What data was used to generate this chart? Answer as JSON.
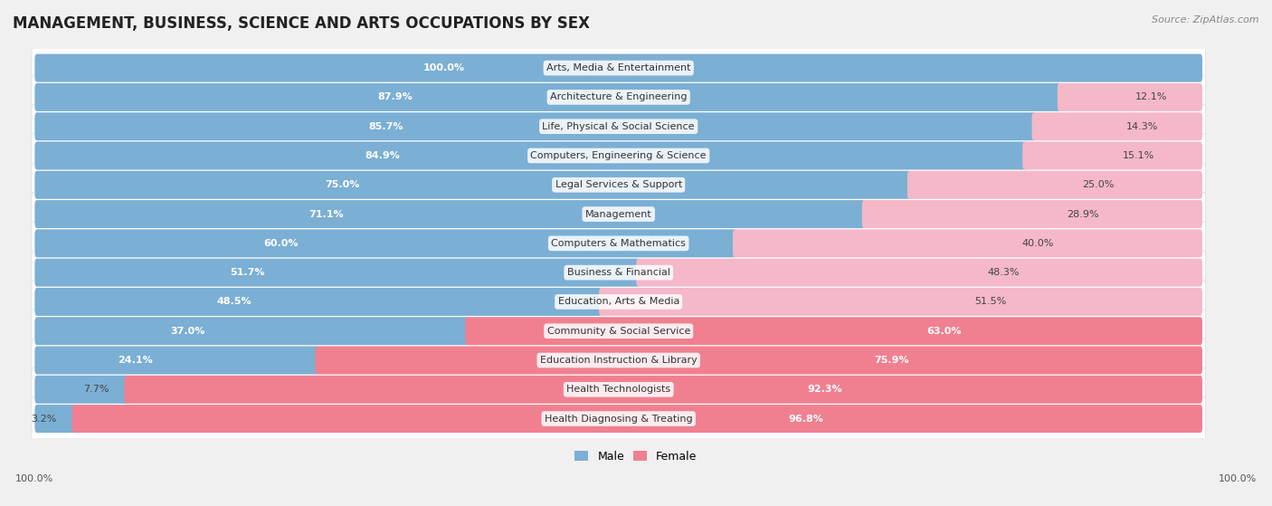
{
  "title": "MANAGEMENT, BUSINESS, SCIENCE AND ARTS OCCUPATIONS BY SEX",
  "source": "Source: ZipAtlas.com",
  "categories": [
    "Arts, Media & Entertainment",
    "Architecture & Engineering",
    "Life, Physical & Social Science",
    "Computers, Engineering & Science",
    "Legal Services & Support",
    "Management",
    "Computers & Mathematics",
    "Business & Financial",
    "Education, Arts & Media",
    "Community & Social Service",
    "Education Instruction & Library",
    "Health Technologists",
    "Health Diagnosing & Treating"
  ],
  "male_pct": [
    100.0,
    87.9,
    85.7,
    84.9,
    75.0,
    71.1,
    60.0,
    51.7,
    48.5,
    37.0,
    24.1,
    7.7,
    3.2
  ],
  "female_pct": [
    0.0,
    12.1,
    14.3,
    15.1,
    25.0,
    28.9,
    40.0,
    48.3,
    51.5,
    63.0,
    75.9,
    92.3,
    96.8
  ],
  "male_color": "#7bafd4",
  "female_color": "#f08090",
  "female_color_light": "#f4b8c8",
  "bg_color": "#f0f0f0",
  "row_bg_color": "#ffffff",
  "title_fontsize": 12,
  "label_fontsize": 8,
  "pct_fontsize": 8,
  "legend_fontsize": 9,
  "source_fontsize": 8
}
